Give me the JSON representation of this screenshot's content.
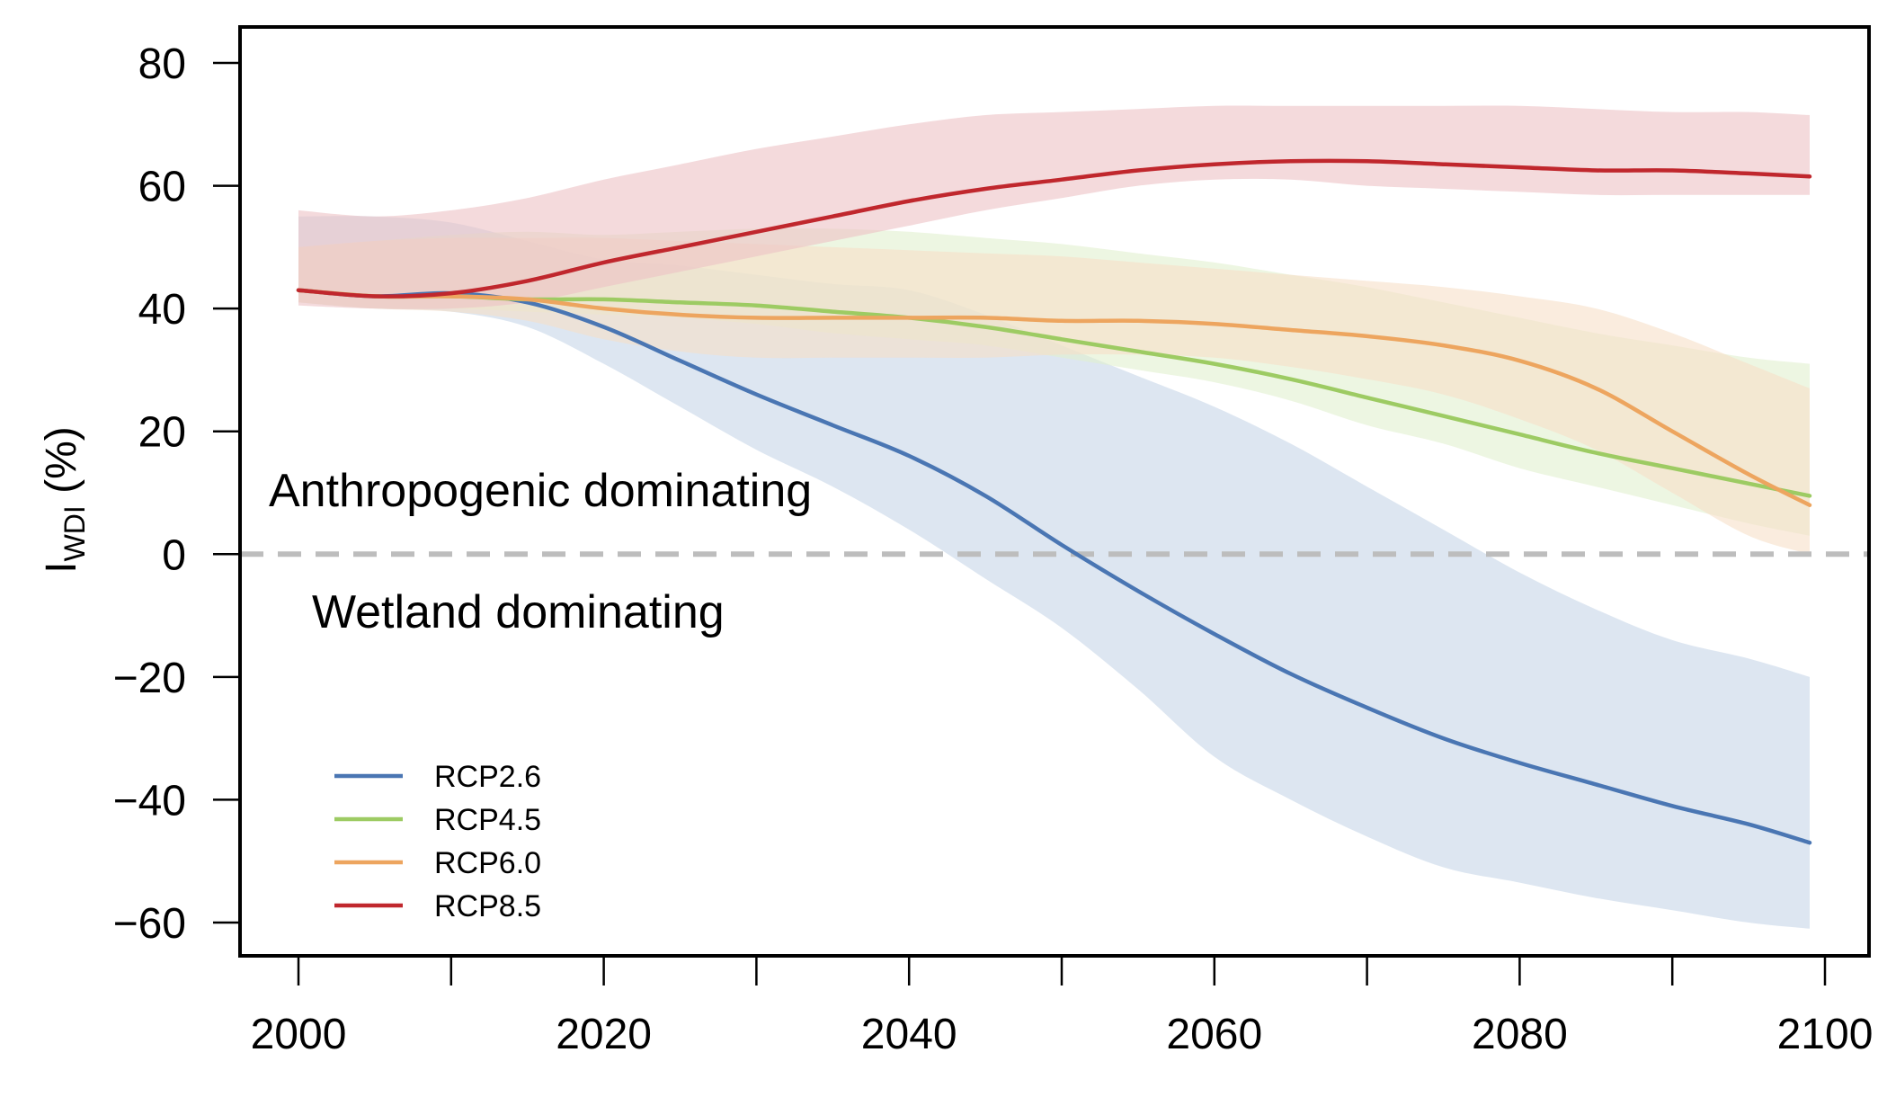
{
  "chart_data": {
    "type": "line",
    "title": "",
    "xlabel": "",
    "ylabel": {
      "main": "I",
      "subscript": "WDI",
      "suffix": " (%)"
    },
    "xlim": [
      2000,
      2100
    ],
    "ylim": [
      -60,
      80
    ],
    "x_ticks": [
      2000,
      2020,
      2040,
      2060,
      2080,
      2100
    ],
    "x_minor_ticks": [
      2010,
      2030,
      2050,
      2070,
      2090
    ],
    "y_ticks": [
      -60,
      -40,
      -20,
      0,
      20,
      40,
      60,
      80
    ],
    "y_tick_labels": [
      "−60",
      "−40",
      "−20",
      "0",
      "20",
      "40",
      "60",
      "80"
    ],
    "grid": false,
    "reference_line": {
      "y": 0,
      "style": "dashed",
      "color": "#bdbdbd"
    },
    "annotations": {
      "above": "Anthropogenic dominating",
      "below": "Wetland dominating"
    },
    "legend_position": "bottom-left",
    "series": [
      {
        "name": "RCP2.6",
        "color": "#4a76b3",
        "band_color": "#c7d5e8",
        "x": [
          2000,
          2005,
          2010,
          2015,
          2020,
          2025,
          2030,
          2035,
          2040,
          2045,
          2050,
          2055,
          2060,
          2065,
          2070,
          2075,
          2080,
          2085,
          2090,
          2095,
          2099
        ],
        "values": [
          43,
          42,
          42.5,
          41,
          37,
          31.5,
          26,
          21,
          16,
          9.5,
          1.5,
          -6,
          -13,
          -19.5,
          -25,
          -30,
          -34,
          -37.5,
          -41,
          -44,
          -47
        ],
        "lower": [
          41,
          40,
          39.5,
          37,
          31,
          24,
          17,
          11,
          4,
          -4,
          -12,
          -22,
          -33,
          -40,
          -46,
          -51,
          -53.5,
          -56,
          -58,
          -60,
          -61
        ],
        "upper": [
          55,
          55,
          54,
          51,
          48,
          47,
          45.5,
          44,
          43,
          39,
          34,
          29,
          24,
          18,
          11,
          4,
          -3,
          -9,
          -14,
          -17,
          -20
        ]
      },
      {
        "name": "RCP4.5",
        "color": "#9dcb63",
        "band_color": "#e1f0cf",
        "x": [
          2000,
          2005,
          2010,
          2015,
          2020,
          2025,
          2030,
          2035,
          2040,
          2045,
          2050,
          2055,
          2060,
          2065,
          2070,
          2075,
          2080,
          2085,
          2090,
          2095,
          2099
        ],
        "values": [
          43,
          42,
          42,
          41.5,
          41.5,
          41,
          40.5,
          39.5,
          38.5,
          37,
          35,
          33,
          31,
          28.5,
          25.5,
          22.5,
          19.5,
          16.5,
          14,
          11.5,
          9.5
        ],
        "lower": [
          41,
          40,
          40,
          39.5,
          39,
          38.5,
          37.5,
          36,
          35,
          34,
          32,
          30,
          28,
          25,
          21,
          18,
          14,
          11,
          8,
          5,
          3
        ],
        "upper": [
          50,
          51,
          52,
          52.5,
          52,
          52.5,
          53,
          53,
          52.5,
          51.5,
          50.5,
          49,
          47.5,
          45.5,
          43.5,
          41,
          38.5,
          36,
          34,
          32,
          31
        ]
      },
      {
        "name": "RCP6.0",
        "color": "#eda55f",
        "band_color": "#f6dfc8",
        "x": [
          2000,
          2005,
          2010,
          2015,
          2020,
          2025,
          2030,
          2035,
          2040,
          2045,
          2050,
          2055,
          2060,
          2065,
          2070,
          2075,
          2080,
          2085,
          2090,
          2095,
          2099
        ],
        "values": [
          43,
          42,
          42,
          41.5,
          40,
          39,
          38.5,
          38.5,
          38.5,
          38.5,
          38,
          38,
          37.5,
          36.5,
          35.5,
          34,
          31.5,
          27,
          20,
          13,
          8
        ],
        "lower": [
          41,
          40,
          39.5,
          38,
          35,
          33,
          32,
          32,
          32,
          32,
          32.5,
          32.5,
          32,
          30.5,
          28.5,
          26,
          22,
          17,
          10,
          3,
          0
        ],
        "upper": [
          50,
          51,
          51.5,
          51.5,
          51.5,
          51,
          50.5,
          50,
          49.5,
          49,
          48.5,
          47.5,
          46.5,
          45.5,
          44.5,
          43.5,
          42,
          40,
          36,
          31,
          27
        ]
      },
      {
        "name": "RCP8.5",
        "color": "#c0272d",
        "band_color": "#edc2c4",
        "x": [
          2000,
          2005,
          2010,
          2015,
          2020,
          2025,
          2030,
          2035,
          2040,
          2045,
          2050,
          2055,
          2060,
          2065,
          2070,
          2075,
          2080,
          2085,
          2090,
          2095,
          2099
        ],
        "values": [
          43,
          42,
          42.5,
          44.5,
          47.5,
          50,
          52.5,
          55,
          57.5,
          59.5,
          61,
          62.5,
          63.5,
          64,
          64,
          63.5,
          63,
          62.5,
          62.5,
          62,
          61.5
        ],
        "lower": [
          40.5,
          40,
          40,
          41,
          43.5,
          46,
          48.5,
          51,
          53.5,
          56,
          58,
          60,
          61,
          61,
          60,
          59.5,
          59,
          58.5,
          58.5,
          58.5,
          58.5
        ],
        "upper": [
          56,
          55,
          56,
          58,
          61,
          63.5,
          66,
          68,
          70,
          71.5,
          72,
          72.5,
          73,
          73,
          73,
          73,
          73,
          72.5,
          72,
          72,
          71.5
        ]
      }
    ]
  }
}
